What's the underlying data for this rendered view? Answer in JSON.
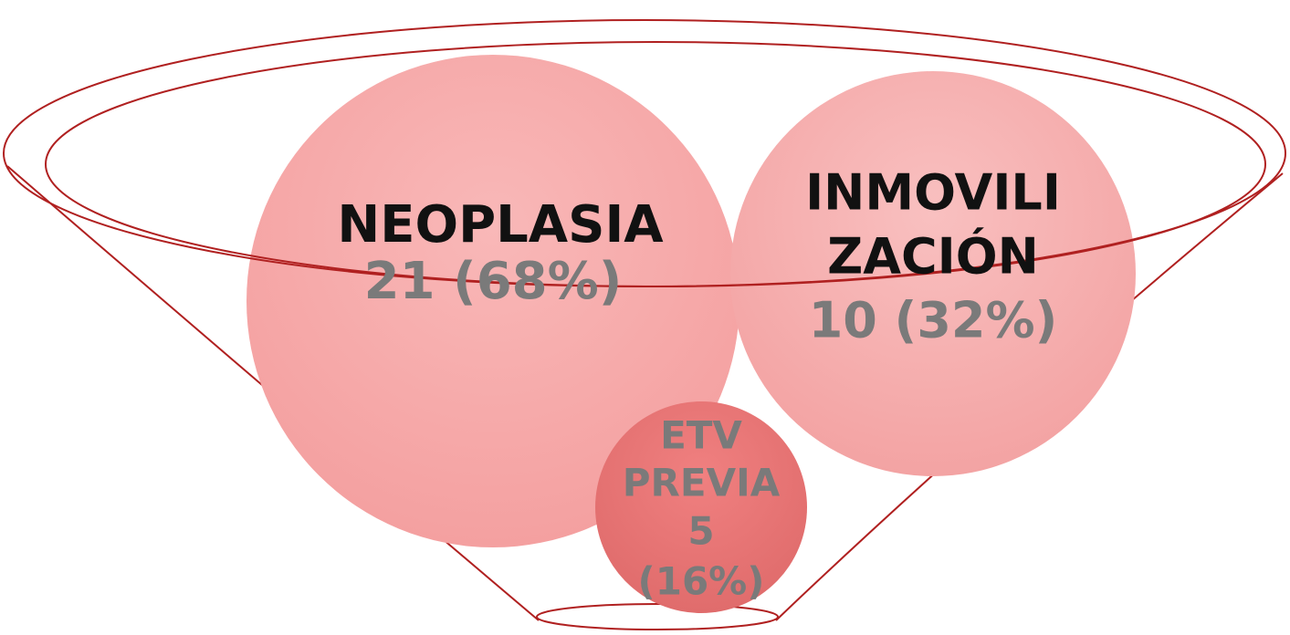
{
  "nodes": [
    {
      "lines": [
        "NEOPLASIA",
        "21 (68%)"
      ]
    },
    {
      "lines": [
        "INMOVILI",
        "ZACIÓN",
        "10 (32%)"
      ]
    },
    {
      "lines": [
        "ETV",
        "PREVIA",
        "5",
        "(16%)"
      ]
    }
  ]
}
